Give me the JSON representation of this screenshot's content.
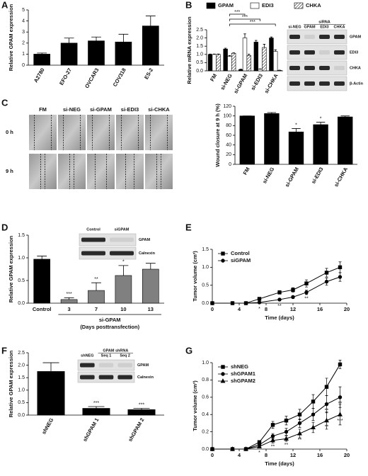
{
  "figure": {
    "micrographs": {
      "columns": [
        "FM",
        "si-NEG",
        "si-GPAM",
        "si-EDI3",
        "si-CHKA"
      ],
      "rows": [
        "0 h",
        "9 h"
      ]
    },
    "blots": [
      {
        "header": "siRNA",
        "columns": [
          "si-NEG",
          "GPAM",
          "EDI3",
          "CHKA"
        ],
        "rows": [
          "GPAM",
          "EDI3",
          "CHKA",
          "β-Actin"
        ]
      },
      {
        "columns": [
          "Control",
          "siGPAM"
        ],
        "rows": [
          "GPAM",
          "Calnexin"
        ]
      },
      {
        "header": "GPAM shRNA",
        "columns": [
          "shNEG",
          "Seq 1",
          "Seq 2"
        ],
        "rows": [
          "GPAM",
          "Calnexin"
        ]
      }
    ]
  },
  "chart_data": [
    {
      "panel": "A",
      "type": "bar",
      "ylabel": "Relative GPAM expression",
      "categories": [
        "A2780",
        "EFO-27",
        "OVCAR3",
        "COV318",
        "ES-2"
      ],
      "values": [
        1.0,
        2.0,
        2.2,
        2.1,
        3.55
      ],
      "errors": [
        0.1,
        0.45,
        0.35,
        0.7,
        0.9
      ],
      "color": "#000000",
      "ylim": [
        0,
        5
      ],
      "yticks": [
        0,
        1,
        2,
        3,
        4,
        5
      ]
    },
    {
      "panel": "B",
      "type": "bar",
      "ylabel": "Relative mRNA expression",
      "categories": [
        "FM",
        "si-NEG",
        "si-GPAM",
        "si-EDI3",
        "si-CHKA"
      ],
      "series": [
        {
          "name": "GPAM",
          "color": "#000000",
          "values": [
            1.0,
            1.33,
            0.08,
            1.75,
            2.0
          ],
          "errors": [
            0.02,
            0.05,
            0.02,
            0.1,
            0.06
          ]
        },
        {
          "name": "EDI3",
          "color": "#ffffff",
          "values": [
            1.0,
            0.88,
            2.0,
            0.1,
            1.18
          ],
          "errors": [
            0.02,
            0.05,
            0.25,
            0.02,
            0.1
          ]
        },
        {
          "name": "CHKA",
          "color": "#ffffff",
          "hatch": true,
          "values": [
            1.0,
            1.07,
            0.93,
            1.42,
            0.03
          ],
          "errors": [
            0.02,
            0.03,
            0.08,
            0.2,
            0.01
          ]
        }
      ],
      "brackets": [
        {
          "from": 1,
          "to": 2,
          "text": "***"
        },
        {
          "from": 1,
          "to": 3,
          "text": "***"
        },
        {
          "from": 1,
          "to": 4,
          "text": "***"
        }
      ],
      "legend": "top",
      "ylim": [
        0,
        2.5
      ],
      "yticks": [
        {
          "value": 0,
          "label": "0.0"
        },
        {
          "value": 0.5,
          "label": "0.5"
        },
        {
          "value": 1,
          "label": "1.0"
        },
        {
          "value": 1.5,
          "label": "1.5"
        },
        {
          "value": 2,
          "label": "2.0"
        },
        {
          "value": 2.5,
          "label": "2.5"
        }
      ]
    },
    {
      "panel": "C",
      "type": "bar",
      "ylabel": "Wound closure at 9 h (%)",
      "categories": [
        "FM",
        "si-NEG",
        "si-GPAM",
        "si-EDI3",
        "si-CHKA"
      ],
      "values": [
        100,
        105,
        67,
        82,
        98
      ],
      "errors": [
        0,
        2,
        7,
        5,
        2
      ],
      "color": "#000000",
      "annotations": [
        null,
        null,
        "*",
        "*",
        null
      ],
      "ylim": [
        0,
        120
      ],
      "yticks": [
        0,
        20,
        40,
        60,
        80,
        100,
        120
      ]
    },
    {
      "panel": "D",
      "type": "bar",
      "ylabel": "Relative GPAM expression",
      "xlabel": [
        "si-GPAM",
        "(Days posttransfection)"
      ],
      "categories": [
        "Control",
        "3",
        "7",
        "10",
        "13"
      ],
      "values": [
        0.97,
        0.08,
        0.28,
        0.61,
        0.75
      ],
      "errors": [
        0.07,
        0.04,
        0.17,
        0.22,
        0.13
      ],
      "colors": [
        "#000000",
        "#808080",
        "#808080",
        "#808080",
        "#808080"
      ],
      "annotations": [
        null,
        "***",
        "**",
        "*",
        null
      ],
      "ylim": [
        0,
        1.5
      ],
      "yticks": [
        {
          "value": 0,
          "label": "0.0"
        },
        {
          "value": 0.5,
          "label": "0.5"
        },
        {
          "value": 1,
          "label": "1.0"
        },
        {
          "value": 1.5,
          "label": "1.5"
        }
      ]
    },
    {
      "panel": "E",
      "type": "line",
      "xlabel": "Time (days)",
      "ylabel": "Tumor volume (cm³)",
      "x": [
        0,
        3,
        5,
        7,
        10,
        12,
        14,
        17,
        19
      ],
      "series": [
        {
          "name": "Control",
          "color": "#000000",
          "marker": "square",
          "values": [
            0,
            0,
            0,
            0.12,
            0.3,
            0.37,
            0.55,
            0.85,
            1.0
          ],
          "errors": [
            0,
            0,
            0,
            0.03,
            0.05,
            0.06,
            0.1,
            0.12,
            0.15
          ]
        },
        {
          "name": "siGPAM",
          "color": "#000000",
          "marker": "circle",
          "values": [
            0,
            0,
            0,
            0.02,
            0.1,
            0.17,
            0.3,
            0.6,
            0.73
          ],
          "errors": [
            0,
            0,
            0,
            0.02,
            0.03,
            0.04,
            0.06,
            0.1,
            0.12
          ],
          "labels": [
            null,
            null,
            null,
            "*",
            "**",
            null,
            "**",
            null,
            null
          ]
        }
      ],
      "legend": "upper left",
      "xlim": [
        0,
        20
      ],
      "xticks": [
        0,
        4,
        8,
        12,
        16,
        20
      ],
      "ylim": [
        0,
        1.5
      ],
      "yticks": [
        {
          "value": 0,
          "label": "0.0"
        },
        {
          "value": 0.5,
          "label": "0.5"
        },
        {
          "value": 1,
          "label": "1.0"
        },
        {
          "value": 1.5,
          "label": "1.5"
        }
      ]
    },
    {
      "panel": "F",
      "type": "bar",
      "ylabel": "Relative GPAM expression",
      "categories": [
        "shNEG",
        "shGPAM 1",
        "shGPAM 2"
      ],
      "values": [
        1.75,
        0.27,
        0.22
      ],
      "errors": [
        0.35,
        0.07,
        0.05
      ],
      "color": "#000000",
      "annotations": [
        null,
        "***",
        "***"
      ],
      "ylim": [
        0,
        2.5
      ],
      "yticks": [
        {
          "value": 0,
          "label": "0.0"
        },
        {
          "value": 0.5,
          "label": "0.5"
        },
        {
          "value": 1,
          "label": "1.0"
        },
        {
          "value": 1.5,
          "label": "1.5"
        },
        {
          "value": 2,
          "label": "2.0"
        },
        {
          "value": 2.5,
          "label": "2.5"
        }
      ]
    },
    {
      "panel": "G",
      "type": "line",
      "xlabel": "Time (days)",
      "ylabel": "Tumor volume (cm³)",
      "x": [
        0,
        3,
        5,
        7,
        9,
        11,
        13,
        15,
        17,
        19
      ],
      "series": [
        {
          "name": "shNEG",
          "color": "#000000",
          "marker": "square",
          "values": [
            0,
            0,
            0,
            0.08,
            0.28,
            0.33,
            0.4,
            0.55,
            0.72,
            0.98
          ],
          "errors": [
            0,
            0,
            0,
            0.02,
            0.04,
            0.05,
            0.06,
            0.08,
            0.1,
            0.05
          ]
        },
        {
          "name": "shGPAM1",
          "color": "#000000",
          "marker": "circle",
          "values": [
            0,
            0,
            0,
            0.05,
            0.15,
            0.2,
            0.3,
            0.4,
            0.52,
            0.6
          ],
          "errors": [
            0,
            0,
            0,
            0.02,
            0.03,
            0.04,
            0.05,
            0.07,
            0.1,
            0.12
          ],
          "labels": [
            null,
            null,
            null,
            null,
            null,
            null,
            null,
            null,
            "**",
            "**"
          ]
        },
        {
          "name": "shGPAM2",
          "color": "#000000",
          "marker": "triangle",
          "values": [
            0,
            0,
            0,
            0.03,
            0.1,
            0.12,
            0.18,
            0.25,
            0.33,
            0.4
          ],
          "errors": [
            0,
            0,
            0,
            0.01,
            0.03,
            0.03,
            0.05,
            0.06,
            0.1,
            0.12
          ],
          "labels": [
            null,
            null,
            null,
            "*",
            "**",
            "**",
            "**",
            null,
            "**",
            "***"
          ]
        }
      ],
      "legend": "upper left",
      "xlim": [
        0,
        20
      ],
      "xticks": [
        0,
        4,
        8,
        12,
        16,
        20
      ],
      "ylim": [
        0,
        1.0
      ],
      "yticks": [
        {
          "value": 0,
          "label": "0.0"
        },
        {
          "value": 0.2,
          "label": "0.2"
        },
        {
          "value": 0.4,
          "label": "0.4"
        },
        {
          "value": 0.6,
          "label": "0.6"
        },
        {
          "value": 0.8,
          "label": "0.8"
        },
        {
          "value": 1.0,
          "label": "1.0"
        }
      ]
    }
  ]
}
